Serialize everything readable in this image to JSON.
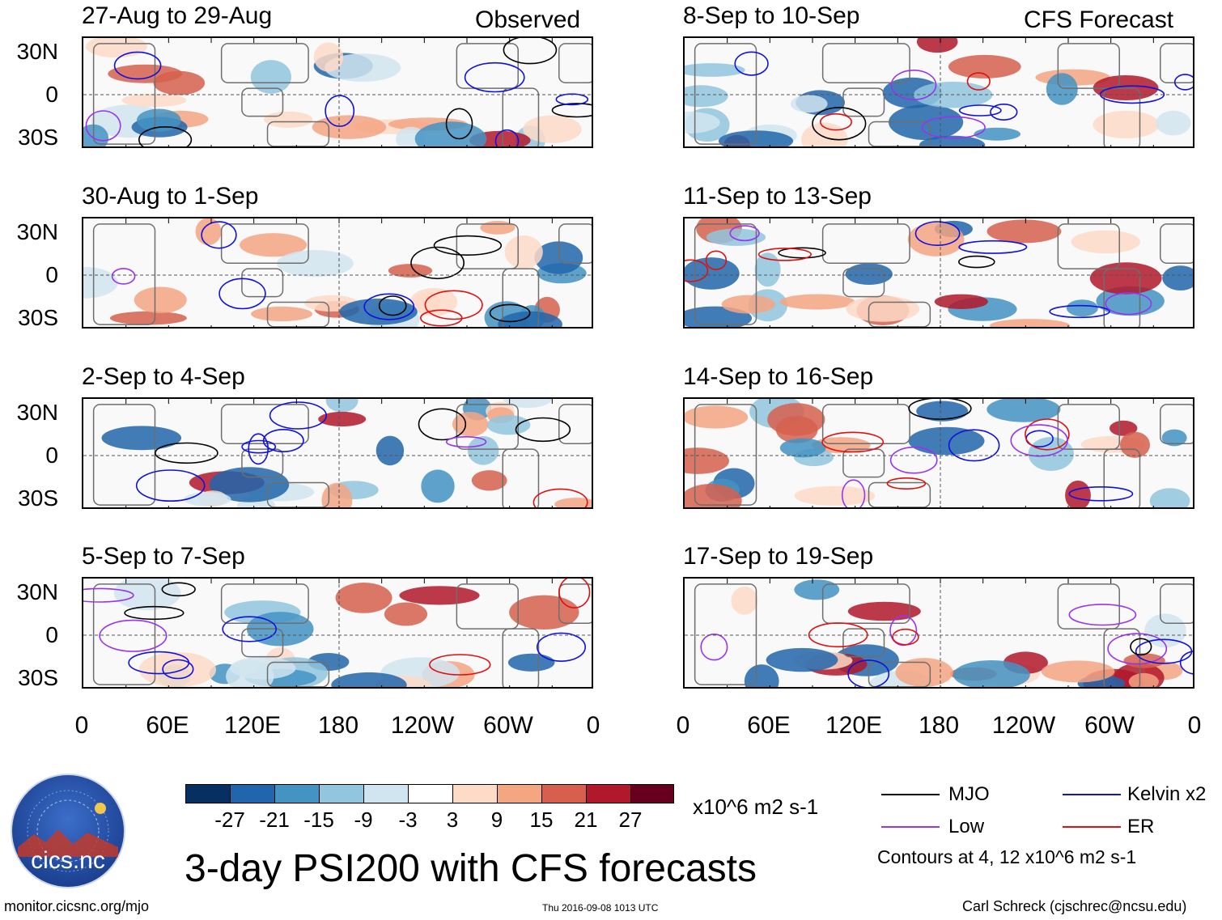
{
  "chart_data": {
    "type": "heatmap",
    "title": "3-day PSI200 with CFS forecasts",
    "headers": {
      "observed": "Observed",
      "forecast": "CFS Forecast"
    },
    "panels": [
      {
        "period": "27-Aug to 29-Aug",
        "source": "observed"
      },
      {
        "period": "30-Aug to 1-Sep",
        "source": "observed"
      },
      {
        "period": "2-Sep to 4-Sep",
        "source": "observed"
      },
      {
        "period": "5-Sep to 7-Sep",
        "source": "observed"
      },
      {
        "period": "8-Sep to 10-Sep",
        "source": "forecast"
      },
      {
        "period": "11-Sep to 13-Sep",
        "source": "forecast"
      },
      {
        "period": "14-Sep to 16-Sep",
        "source": "forecast"
      },
      {
        "period": "17-Sep to 19-Sep",
        "source": "forecast"
      }
    ],
    "y_ticks": [
      "30N",
      "0",
      "30S"
    ],
    "x_ticks": [
      "0",
      "60E",
      "120E",
      "180",
      "120W",
      "60W",
      "0"
    ],
    "colorbar": {
      "labels": [
        "-27",
        "-21",
        "-15",
        "-9",
        "-3",
        "3",
        "9",
        "15",
        "21",
        "27"
      ],
      "colors": [
        "#053061",
        "#2166ac",
        "#4393c3",
        "#92c5de",
        "#d1e5f0",
        "#ffffff",
        "#fddbc7",
        "#f4a582",
        "#d6604d",
        "#b2182b",
        "#67001f"
      ],
      "units": "x10^6 m2 s-1"
    },
    "legend": {
      "items": [
        {
          "label": "MJO",
          "color": "#000000"
        },
        {
          "label": "Kelvin x2",
          "color": "#1010e0"
        },
        {
          "label": "Low",
          "color": "#9933ee"
        },
        {
          "label": "ER",
          "color": "#e01010"
        }
      ],
      "note": "Contours at 4, 12 x10^6 m2 s-1"
    }
  },
  "logo_text": "cics.nc",
  "footer": {
    "url": "monitor.cicsnc.org/mjo",
    "timestamp": "Thu 2016-09-08 1013 UTC",
    "author": "Carl Schreck (cjschrec@ncsu.edu)"
  }
}
